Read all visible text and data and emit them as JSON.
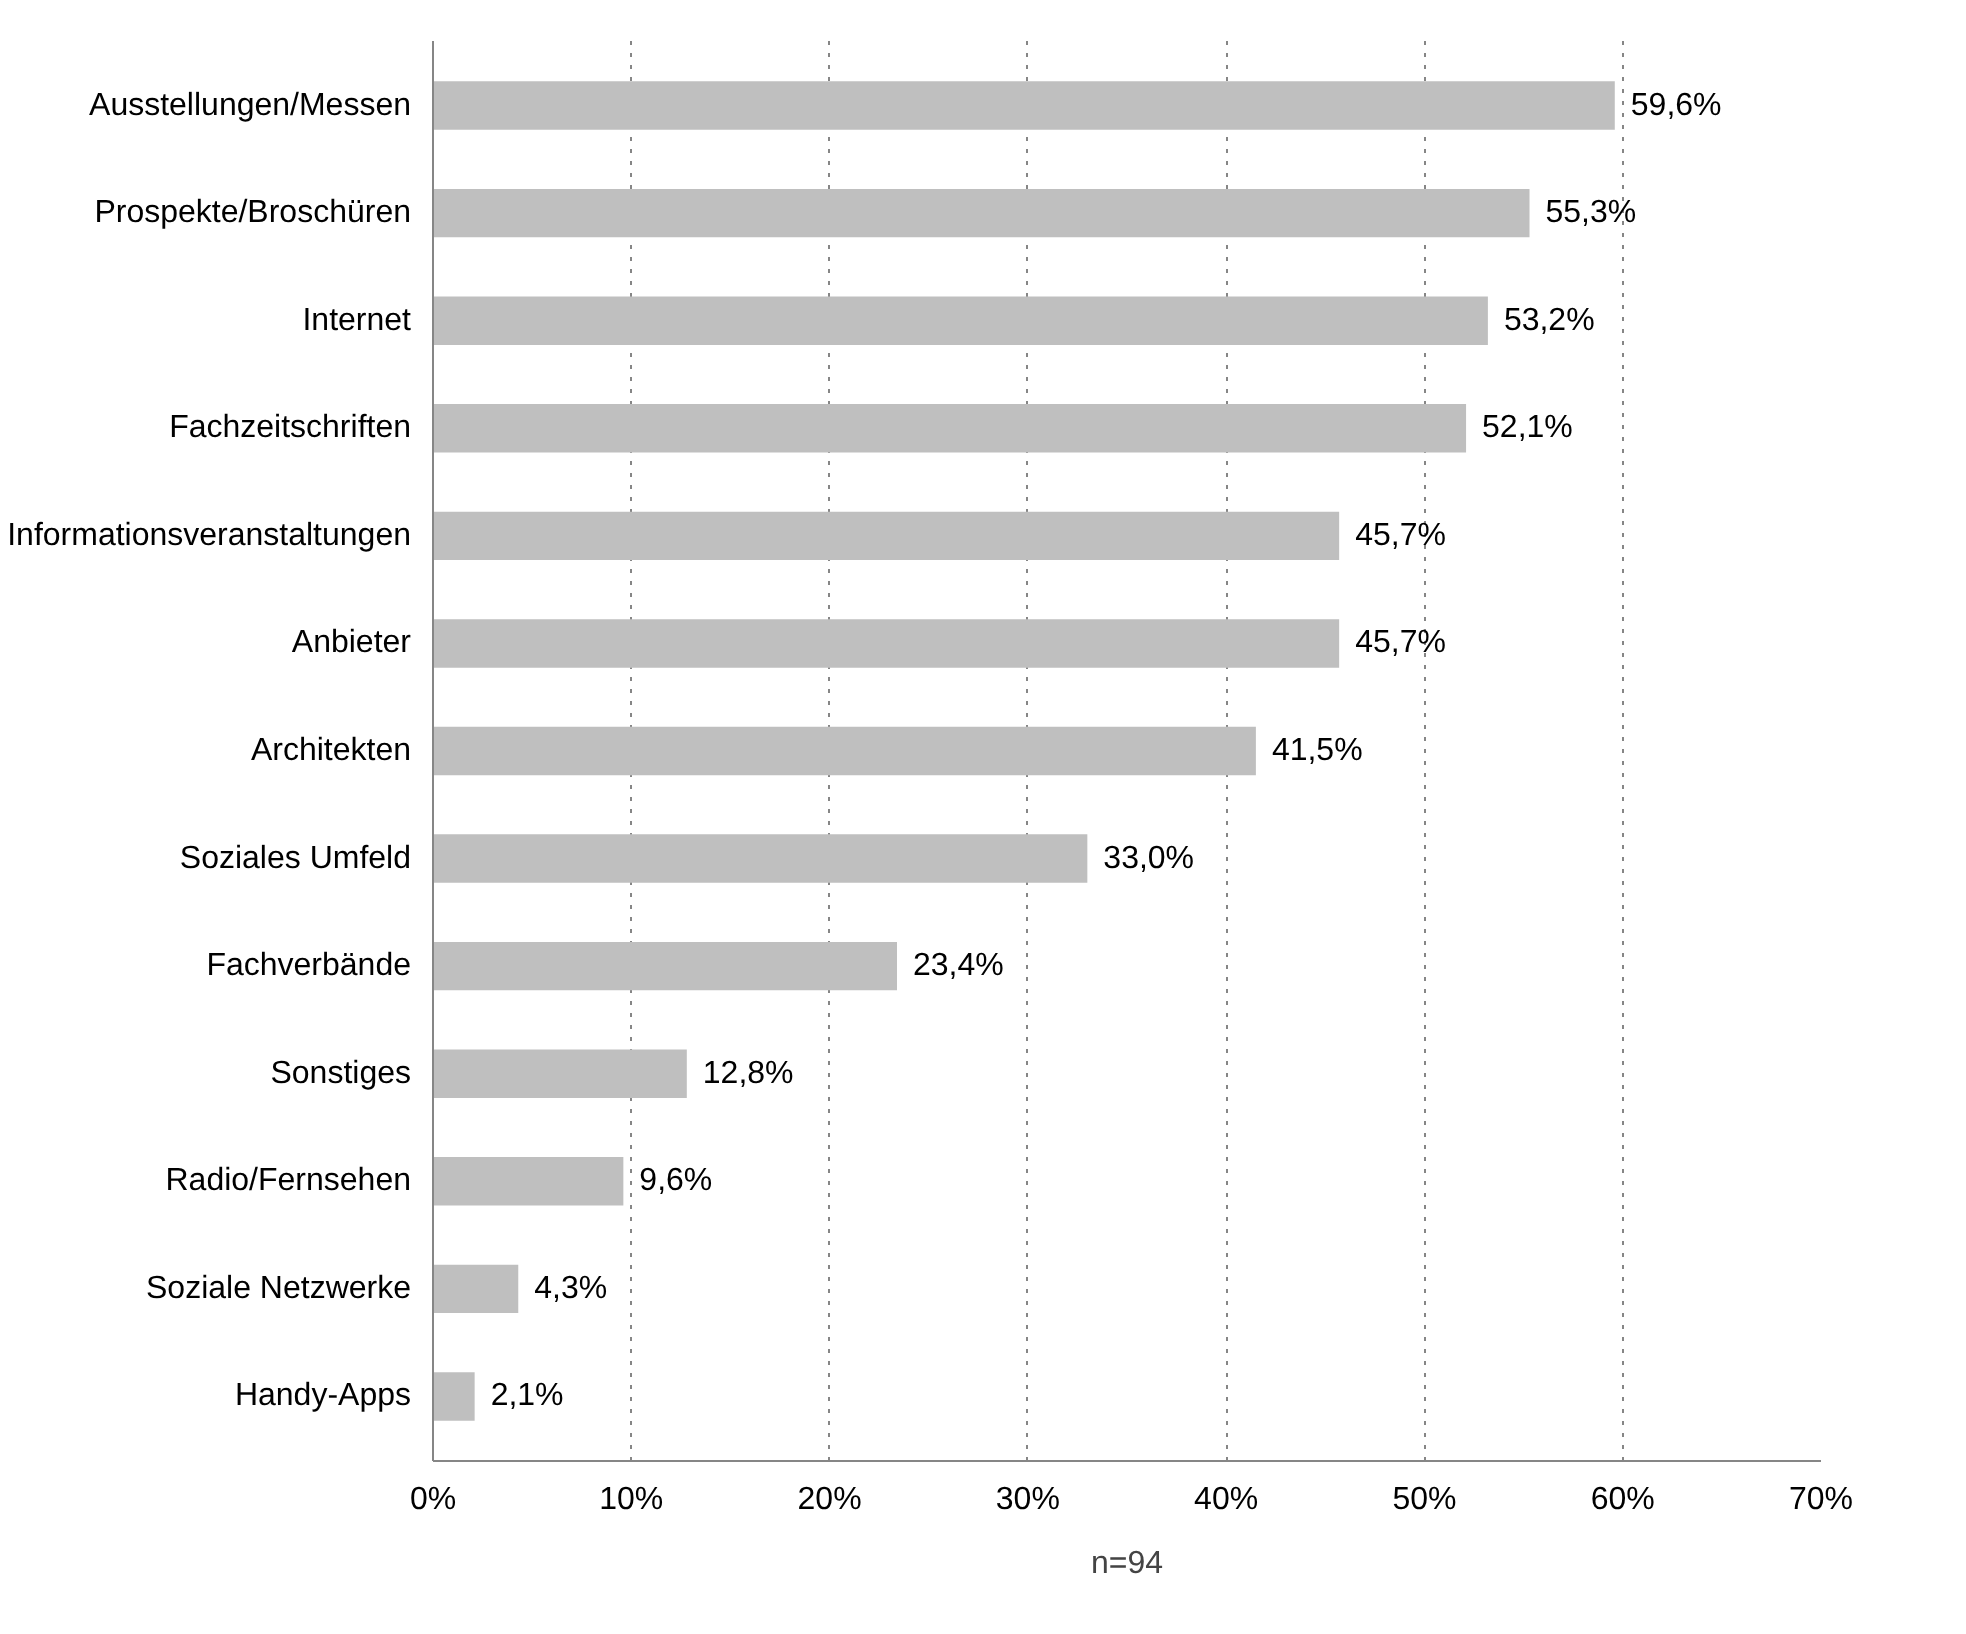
{
  "chart_data": {
    "type": "bar",
    "orientation": "horizontal",
    "categories": [
      "Ausstellungen/Messen",
      "Prospekte/Broschüren",
      "Internet",
      "Fachzeitschriften",
      "Informationsveranstaltungen",
      "Anbieter",
      "Architekten",
      "Soziales Umfeld",
      "Fachverbände",
      "Sonstiges",
      "Radio/Fernsehen",
      "Soziale Netzwerke",
      "Handy-Apps"
    ],
    "values": [
      59.6,
      55.3,
      53.2,
      52.1,
      45.7,
      45.7,
      41.5,
      33.0,
      23.4,
      12.8,
      9.6,
      4.3,
      2.1
    ],
    "value_labels": [
      "59,6%",
      "55,3%",
      "53,2%",
      "52,1%",
      "45,7%",
      "45,7%",
      "41,5%",
      "33,0%",
      "23,4%",
      "12,8%",
      "9,6%",
      "4,3%",
      "2,1%"
    ],
    "color": "#bfbfbf",
    "xlim": [
      0,
      70
    ],
    "xticks": [
      {
        "value": 0,
        "label": "0%"
      },
      {
        "value": 10,
        "label": "10%"
      },
      {
        "value": 20,
        "label": "20%"
      },
      {
        "value": 30,
        "label": "30%"
      },
      {
        "value": 40,
        "label": "40%"
      },
      {
        "value": 50,
        "label": "50%"
      },
      {
        "value": 60,
        "label": "60%"
      },
      {
        "value": 70,
        "label": "70%"
      }
    ],
    "grid": "x",
    "annotations": [
      "n=94"
    ]
  }
}
